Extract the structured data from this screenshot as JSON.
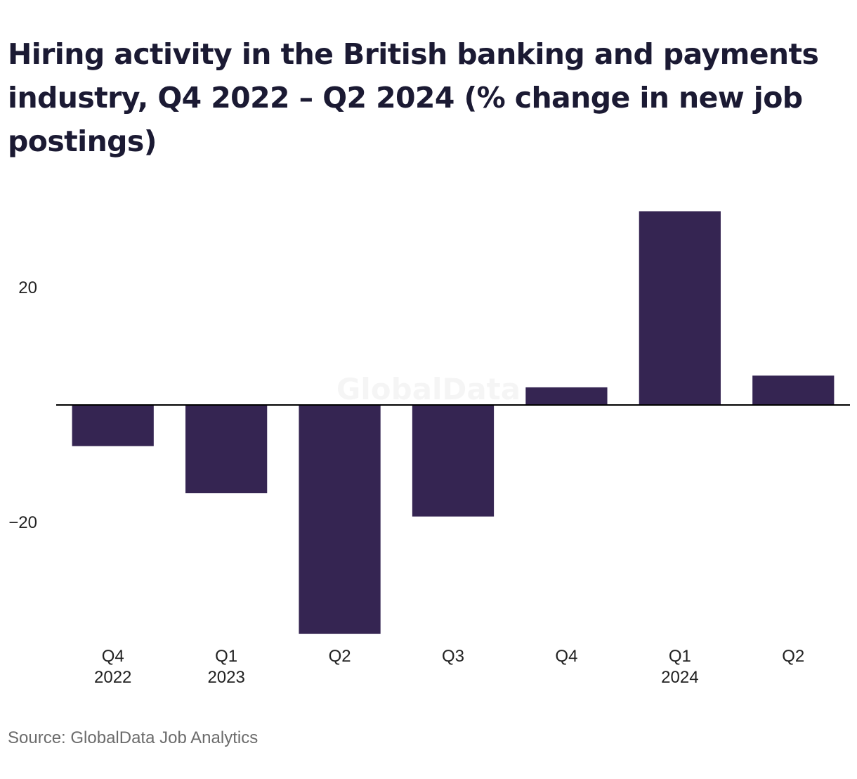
{
  "title": "Hiring activity in the British banking and payments industry, Q4 2022 – Q2 2024 (% change in new job postings)",
  "source": "Source: GlobalData Job Analytics",
  "watermark": "GlobalData",
  "colors": {
    "bar": "#352552",
    "axis": "#000000"
  },
  "chart_data": {
    "type": "bar",
    "title": "Hiring activity in the British banking and payments industry, Q4 2022 – Q2 2024 (% change in new job postings)",
    "xlabel": "",
    "ylabel": "",
    "categories": [
      [
        "Q4",
        "2022"
      ],
      [
        "Q1",
        "2023"
      ],
      [
        "Q2",
        ""
      ],
      [
        "Q3",
        ""
      ],
      [
        "Q4",
        ""
      ],
      [
        "Q1",
        "2024"
      ],
      [
        "Q2",
        ""
      ]
    ],
    "values": [
      -7,
      -15,
      -39,
      -19,
      3,
      33,
      5
    ],
    "yticks": [
      20,
      -20
    ],
    "ytick_labels": [
      "20",
      "−20"
    ],
    "ylim": [
      -40,
      36
    ],
    "grid": false,
    "legend": "none"
  }
}
